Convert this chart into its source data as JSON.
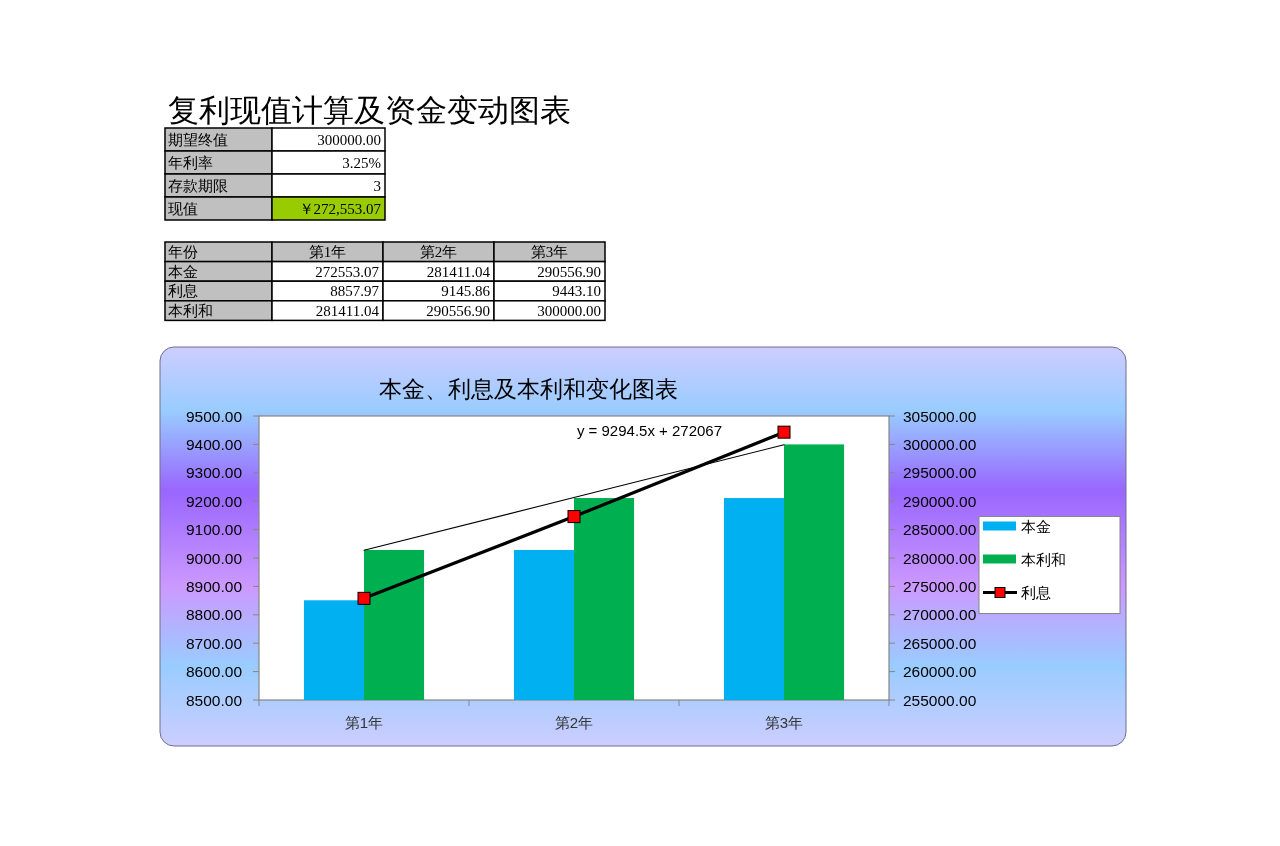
{
  "chart_data": [
    {
      "type": "other",
      "title": "复利现值计算及资金变动图表",
      "annotations": [
        "期望终值",
        "300000.00",
        "年利率",
        "3.25%",
        "存款期限",
        "3",
        "现值",
        "￥272,553.07"
      ],
      "colors": [
        "#c0c0c0",
        "#ffffff",
        "#c0c0c0",
        "#ffffff",
        "#c0c0c0",
        "#ffffff",
        "#c0c0c0",
        "#99cc00"
      ]
    },
    {
      "type": "other",
      "categories": [
        "年份",
        "第1年",
        "第2年",
        "第3年"
      ],
      "annotations": [
        "本金",
        "272553.07",
        "281411.04",
        "290556.90",
        "利息",
        "8857.97",
        "9145.86",
        "9443.10",
        "本利和",
        "281411.04",
        "290556.90",
        "300000.00"
      ]
    },
    {
      "type": "bar",
      "title": "本金、利息及本利和变化图表",
      "categories": [
        "第1年",
        "第2年",
        "第3年"
      ],
      "series": [
        {
          "name": "本金",
          "type": "bar",
          "axis": "y2",
          "color": "#00b0f0",
          "values": [
            272553.07,
            281411.04,
            290556.9
          ]
        },
        {
          "name": "利息",
          "type": "line",
          "color": "#000000",
          "colors": [
            "#ff0000",
            "#ff0000",
            "#ff0000"
          ],
          "marker": "square",
          "values": [
            8857.97,
            9145.86,
            9443.1
          ]
        },
        {
          "name": "本利和",
          "type": "bar",
          "axis": "y2",
          "color": "#00b050",
          "values": [
            281411.04,
            290556.9,
            300000.0
          ]
        },
        {
          "type": "line",
          "axis": "y2",
          "color": "#000000",
          "marker": "none",
          "values": [
            281362,
            290656,
            299951
          ]
        }
      ],
      "ylim": [
        8500,
        9500
      ],
      "yticks": [
        {
          "value": 8500,
          "label": "8500.00"
        },
        {
          "value": 8600,
          "label": "8600.00"
        },
        {
          "value": 8700,
          "label": "8700.00"
        },
        {
          "value": 8800,
          "label": "8800.00"
        },
        {
          "value": 8900,
          "label": "8900.00"
        },
        {
          "value": 9000,
          "label": "9000.00"
        },
        {
          "value": 9100,
          "label": "9100.00"
        },
        {
          "value": 9200,
          "label": "9200.00"
        },
        {
          "value": 9300,
          "label": "9300.00"
        },
        {
          "value": 9400,
          "label": "9400.00"
        },
        {
          "value": 9500,
          "label": "9500.00"
        }
      ],
      "y2lim": [
        255000,
        305000
      ],
      "y2ticks": [
        {
          "value": 255000,
          "label": "255000.00"
        },
        {
          "value": 260000,
          "label": "260000.00"
        },
        {
          "value": 265000,
          "label": "265000.00"
        },
        {
          "value": 270000,
          "label": "270000.00"
        },
        {
          "value": 275000,
          "label": "275000.00"
        },
        {
          "value": 280000,
          "label": "280000.00"
        },
        {
          "value": 285000,
          "label": "285000.00"
        },
        {
          "value": 290000,
          "label": "290000.00"
        },
        {
          "value": 295000,
          "label": "295000.00"
        },
        {
          "value": 300000,
          "label": "300000.00"
        },
        {
          "value": 305000,
          "label": "305000.00"
        }
      ],
      "legend": "right",
      "annotations": [
        "y = 9294.5x + 272067"
      ]
    }
  ]
}
